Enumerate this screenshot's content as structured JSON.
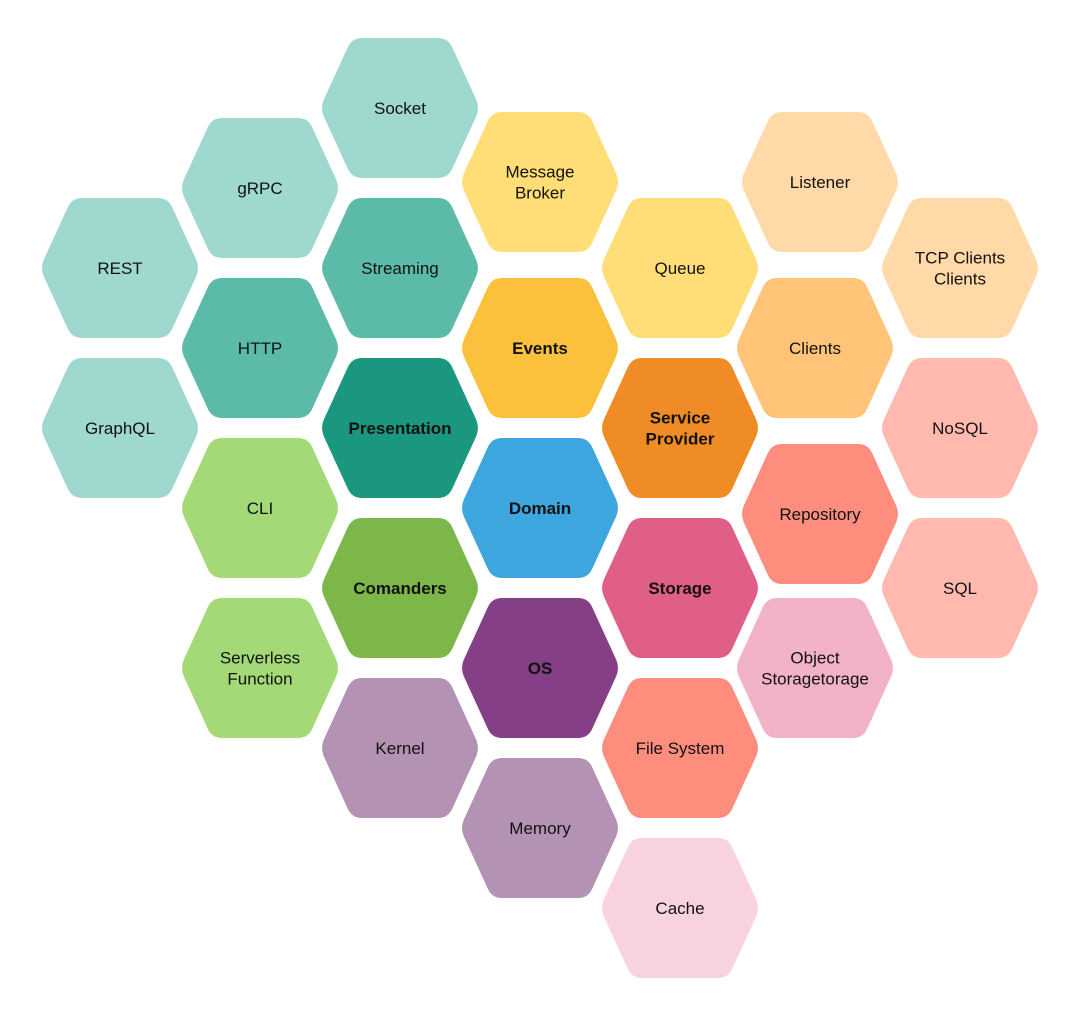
{
  "colors": {
    "teal_light": "#9ed8ce",
    "teal_mid": "#5cbaa8",
    "teal_dark": "#1b977f",
    "yellow_light": "#ffdd77",
    "yellow_dark": "#fbc13d",
    "peach_light": "#ffd9a8",
    "orange_light": "#ffc478",
    "orange_dark": "#ef8c25",
    "blue": "#3ea6de",
    "green_light": "#a4d977",
    "green_dark": "#7db649",
    "purple_dark": "#853f87",
    "purple_light": "#b392b4",
    "pink_dark": "#df5f86",
    "pink_light": "#f2b3c7",
    "pink_pale": "#f8d3dd",
    "salmon": "#fe8d7e",
    "salmon_light": "#ffb9ae"
  },
  "hexagons": [
    {
      "name": "socket",
      "lines": [
        "Socket"
      ],
      "color": "teal_light",
      "bold": false
    },
    {
      "name": "grpc",
      "lines": [
        "gRPC"
      ],
      "color": "teal_light",
      "bold": false
    },
    {
      "name": "rest",
      "lines": [
        "REST"
      ],
      "color": "teal_light",
      "bold": false
    },
    {
      "name": "graphql",
      "lines": [
        "GraphQL"
      ],
      "color": "teal_light",
      "bold": false
    },
    {
      "name": "streaming",
      "lines": [
        "Streaming"
      ],
      "color": "teal_mid",
      "bold": false
    },
    {
      "name": "http",
      "lines": [
        "HTTP"
      ],
      "color": "teal_mid",
      "bold": false
    },
    {
      "name": "presentation",
      "lines": [
        "Presentation"
      ],
      "color": "teal_dark",
      "bold": true
    },
    {
      "name": "message-broker",
      "lines": [
        "Message",
        "Broker"
      ],
      "color": "yellow_light",
      "bold": false
    },
    {
      "name": "queue",
      "lines": [
        "Queue"
      ],
      "color": "yellow_light",
      "bold": false
    },
    {
      "name": "events",
      "lines": [
        "Events"
      ],
      "color": "yellow_dark",
      "bold": true
    },
    {
      "name": "listener",
      "lines": [
        "Listener"
      ],
      "color": "peach_light",
      "bold": false
    },
    {
      "name": "tcp-clients",
      "lines": [
        "TCP Clients",
        "Clients"
      ],
      "color": "peach_light",
      "bold": false
    },
    {
      "name": "clients",
      "lines": [
        "Clients"
      ],
      "color": "orange_light",
      "bold": false
    },
    {
      "name": "service-provider",
      "lines": [
        "Service",
        "Provider"
      ],
      "color": "orange_dark",
      "bold": true
    },
    {
      "name": "domain",
      "lines": [
        "Domain"
      ],
      "color": "blue",
      "bold": true
    },
    {
      "name": "cli",
      "lines": [
        "CLI"
      ],
      "color": "green_light",
      "bold": false
    },
    {
      "name": "serverless-function",
      "lines": [
        "Serverless",
        "Function"
      ],
      "color": "green_light",
      "bold": false
    },
    {
      "name": "comanders",
      "lines": [
        "Comanders"
      ],
      "color": "green_dark",
      "bold": true
    },
    {
      "name": "os",
      "lines": [
        "OS"
      ],
      "color": "purple_dark",
      "bold": true
    },
    {
      "name": "kernel",
      "lines": [
        "Kernel"
      ],
      "color": "purple_light",
      "bold": false
    },
    {
      "name": "memory",
      "lines": [
        "Memory"
      ],
      "color": "purple_light",
      "bold": false
    },
    {
      "name": "storage",
      "lines": [
        "Storage"
      ],
      "color": "pink_dark",
      "bold": true
    },
    {
      "name": "object-storage",
      "lines": [
        "Object",
        "Storagetorage"
      ],
      "color": "pink_light",
      "bold": false
    },
    {
      "name": "cache",
      "lines": [
        "Cache"
      ],
      "color": "pink_pale",
      "bold": false
    },
    {
      "name": "file-system",
      "lines": [
        "File System"
      ],
      "color": "salmon",
      "bold": false
    },
    {
      "name": "repository",
      "lines": [
        "Repository"
      ],
      "color": "salmon",
      "bold": false
    },
    {
      "name": "nosql",
      "lines": [
        "NoSQL"
      ],
      "color": "salmon_light",
      "bold": false
    },
    {
      "name": "sql",
      "lines": [
        "SQL"
      ],
      "color": "salmon_light",
      "bold": false
    }
  ]
}
